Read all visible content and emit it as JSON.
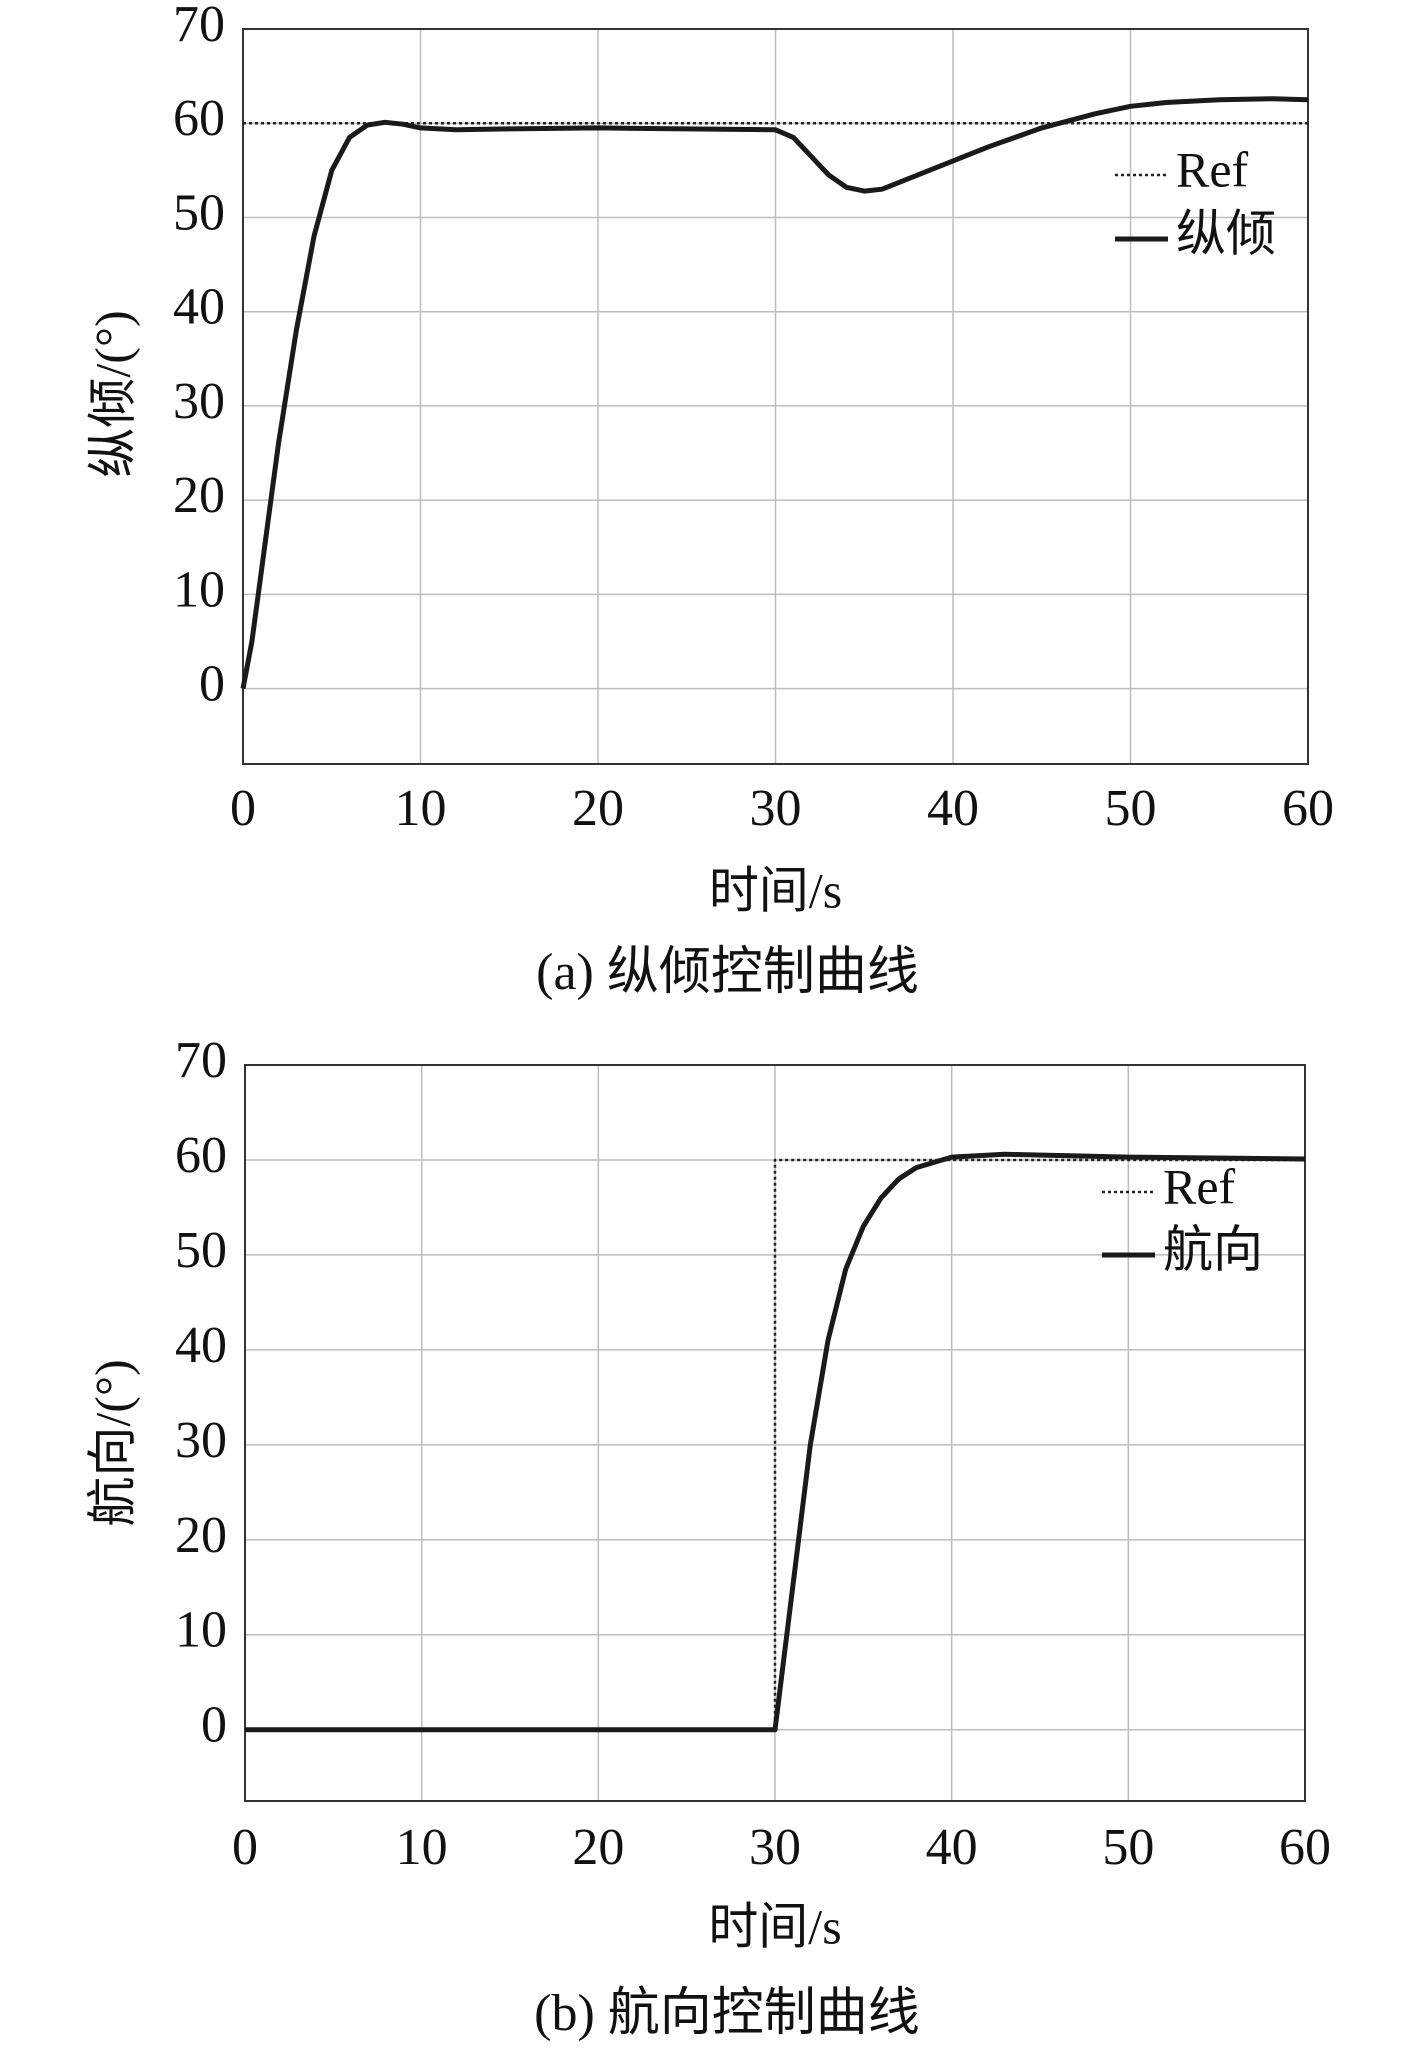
{
  "chart_data": [
    {
      "type": "line",
      "caption": "(a) 纵倾控制曲线",
      "xlabel": "时间/s",
      "ylabel": "纵倾/(°)",
      "xlim": [
        0,
        60
      ],
      "ylim": [
        -8,
        70
      ],
      "xticks": [
        0,
        10,
        20,
        30,
        40,
        50,
        60
      ],
      "yticks": [
        0,
        10,
        20,
        30,
        40,
        50,
        60,
        70
      ],
      "grid": true,
      "legend": "upper right",
      "series": [
        {
          "name": "Ref",
          "color": "#222222",
          "dash": "dotted",
          "x": [
            0,
            60
          ],
          "values": [
            60,
            60
          ]
        },
        {
          "name": "纵倾",
          "color": "#1a1a1a",
          "dash": "solid",
          "x": [
            0,
            0.5,
            1,
            1.5,
            2,
            3,
            4,
            5,
            6,
            7,
            8,
            9,
            10,
            12,
            15,
            20,
            25,
            30,
            31,
            32,
            33,
            34,
            35,
            36,
            38,
            40,
            42,
            45,
            48,
            50,
            52,
            55,
            58,
            60
          ],
          "values": [
            0,
            5,
            12,
            19,
            26,
            38,
            48,
            55,
            58.5,
            59.8,
            60.1,
            59.9,
            59.5,
            59.3,
            59.4,
            59.5,
            59.4,
            59.3,
            58.5,
            56.5,
            54.5,
            53.2,
            52.8,
            53,
            54.5,
            56,
            57.5,
            59.5,
            61,
            61.8,
            62.2,
            62.5,
            62.6,
            62.5
          ]
        }
      ]
    },
    {
      "type": "line",
      "caption": "(b) 航向控制曲线",
      "xlabel": "时间/s",
      "ylabel": "航向/(°)",
      "xlim": [
        0,
        60
      ],
      "ylim": [
        -7.5,
        70
      ],
      "xticks": [
        0,
        10,
        20,
        30,
        40,
        50,
        60
      ],
      "yticks": [
        0,
        10,
        20,
        30,
        40,
        50,
        60,
        70
      ],
      "grid": true,
      "legend": "upper right",
      "series": [
        {
          "name": "Ref",
          "color": "#222222",
          "dash": "dotted",
          "x": [
            0,
            30,
            30,
            60
          ],
          "values": [
            0,
            0,
            60,
            60
          ]
        },
        {
          "name": "航向",
          "color": "#1a1a1a",
          "dash": "solid",
          "x": [
            0,
            30,
            31,
            32,
            33,
            34,
            35,
            36,
            37,
            38,
            40,
            43,
            50,
            60
          ],
          "values": [
            0,
            0,
            15,
            30,
            41,
            48.5,
            53,
            56,
            58,
            59.2,
            60.3,
            60.6,
            60.3,
            60.1
          ]
        }
      ]
    }
  ]
}
